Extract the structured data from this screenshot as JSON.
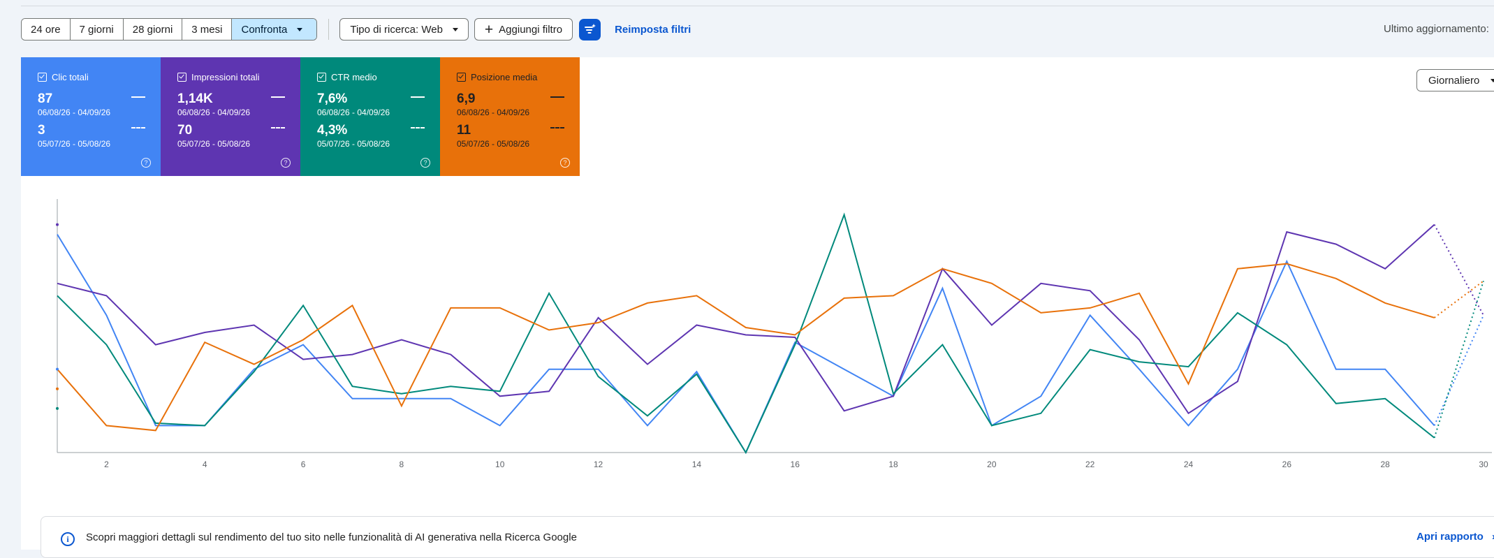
{
  "toolbar": {
    "ranges": [
      "24 ore",
      "7 giorni",
      "28 giorni",
      "3 mesi"
    ],
    "compare_label": "Confronta",
    "search_type_label": "Tipo di ricerca: Web",
    "add_filter_label": "Aggiungi filtro",
    "reset_filters_label": "Reimposta filtri",
    "last_update_label": "Ultimo aggiornamento:"
  },
  "cards": [
    {
      "title": "Clic totali",
      "current": "87",
      "current_range": "06/08/26 - 04/09/26",
      "previous": "3",
      "previous_range": "05/07/26 - 05/08/26",
      "color": "#4285f4"
    },
    {
      "title": "Impressioni totali",
      "current": "1,14K",
      "current_range": "06/08/26 - 04/09/26",
      "previous": "70",
      "previous_range": "05/07/26 - 05/08/26",
      "color": "#5e35b1"
    },
    {
      "title": "CTR medio",
      "current": "7,6%",
      "current_range": "06/08/26 - 04/09/26",
      "previous": "4,3%",
      "previous_range": "05/07/26 - 05/08/26",
      "color": "#00897b"
    },
    {
      "title": "Posizione media",
      "current": "6,9",
      "current_range": "06/08/26 - 04/09/26",
      "previous": "11",
      "previous_range": "05/07/26 - 05/08/26",
      "color": "#e8710a"
    }
  ],
  "granularity_label": "Giornaliero",
  "chart_data": {
    "type": "line",
    "x": [
      1,
      2,
      3,
      4,
      5,
      6,
      7,
      8,
      9,
      10,
      11,
      12,
      13,
      14,
      15,
      16,
      17,
      18,
      19,
      20,
      21,
      22,
      23,
      24,
      25,
      26,
      27,
      28,
      29
    ],
    "x_ticks": [
      "2",
      "4",
      "6",
      "8",
      "10",
      "12",
      "14",
      "16",
      "18",
      "20",
      "22",
      "24",
      "26",
      "28",
      "30"
    ],
    "xlim": [
      1,
      30
    ],
    "ylim": [
      0,
      100
    ],
    "grid": false,
    "series": [
      {
        "color": "#4285f4",
        "values": [
          89,
          56,
          11,
          11,
          34,
          44,
          22,
          22,
          22,
          11,
          34,
          34,
          11,
          33,
          0,
          45,
          34,
          23,
          67,
          11,
          23,
          56,
          34,
          11,
          34,
          78,
          34,
          34,
          11
        ],
        "projection": {
          "x": 30,
          "y": 56
        }
      },
      {
        "color": "#5e35b1",
        "values": [
          69,
          64,
          44,
          49,
          52,
          38,
          40,
          46,
          40,
          23,
          25,
          55,
          36,
          52,
          48,
          47,
          17,
          23,
          75,
          52,
          69,
          66,
          46,
          16,
          29,
          90,
          85,
          75,
          93
        ],
        "projection": {
          "x": 30,
          "y": 56
        }
      },
      {
        "color": "#00897b",
        "values": [
          64,
          44,
          12,
          11,
          33,
          60,
          27,
          24,
          27,
          25,
          65,
          31,
          15,
          32,
          0,
          44,
          97,
          24,
          44,
          11,
          16,
          42,
          37,
          35,
          57,
          44,
          20,
          22,
          6
        ],
        "projection": {
          "x": 30,
          "y": 70
        }
      },
      {
        "color": "#e8710a",
        "values": [
          34,
          11,
          9,
          45,
          36,
          46,
          60,
          19,
          59,
          59,
          50,
          53,
          61,
          64,
          51,
          48,
          63,
          64,
          75,
          69,
          57,
          59,
          65,
          28,
          75,
          77,
          71,
          61,
          55
        ],
        "projection": {
          "x": 30,
          "y": 70
        }
      }
    ],
    "previous_period_markers": [
      {
        "color": "#5e35b1",
        "y": 93
      },
      {
        "color": "#4285f4",
        "y": 34
      },
      {
        "color": "#e8710a",
        "y": 26
      },
      {
        "color": "#00897b",
        "y": 18
      }
    ]
  },
  "banner": {
    "text": "Scopri maggiori dettagli sul rendimento del tuo sito nelle funzionalità di AI generativa nella Ricerca Google",
    "link_label": "Apri rapporto"
  }
}
